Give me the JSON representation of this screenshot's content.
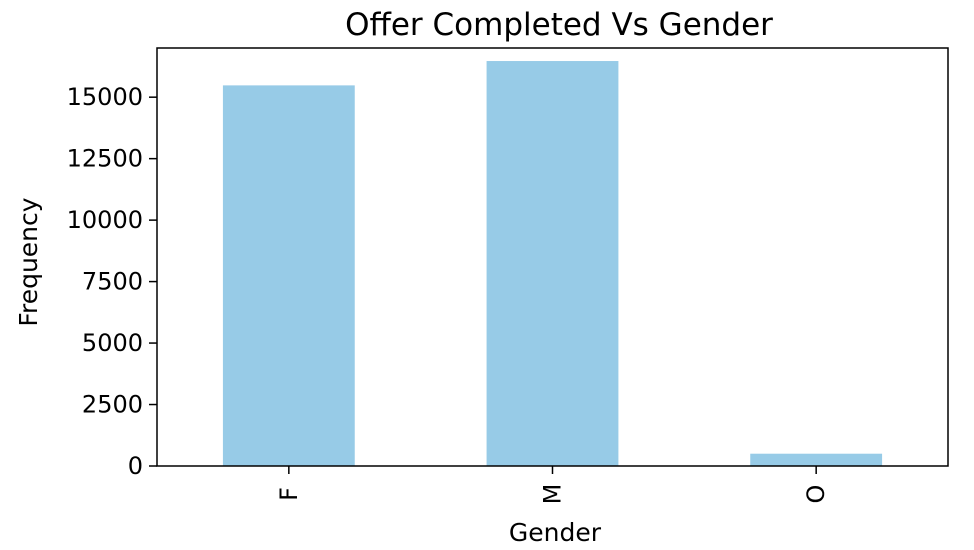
{
  "chart_data": {
    "type": "bar",
    "title": "Offer Completed Vs Gender",
    "xlabel": "Gender",
    "ylabel": "Frequency",
    "categories": [
      "F",
      "M",
      "O"
    ],
    "values": [
      15480,
      16470,
      500
    ],
    "ylim": [
      0,
      17000
    ],
    "yticks": [
      0,
      2500,
      5000,
      7500,
      10000,
      12500,
      15000
    ],
    "ytick_labels": [
      "0",
      "2500",
      "5000",
      "7500",
      "10000",
      "12500",
      "15000"
    ],
    "xtick_rotation": "vertical",
    "grid": false,
    "legend": "none",
    "bar_color": "#97cbe7",
    "axis_color": "#000000"
  }
}
